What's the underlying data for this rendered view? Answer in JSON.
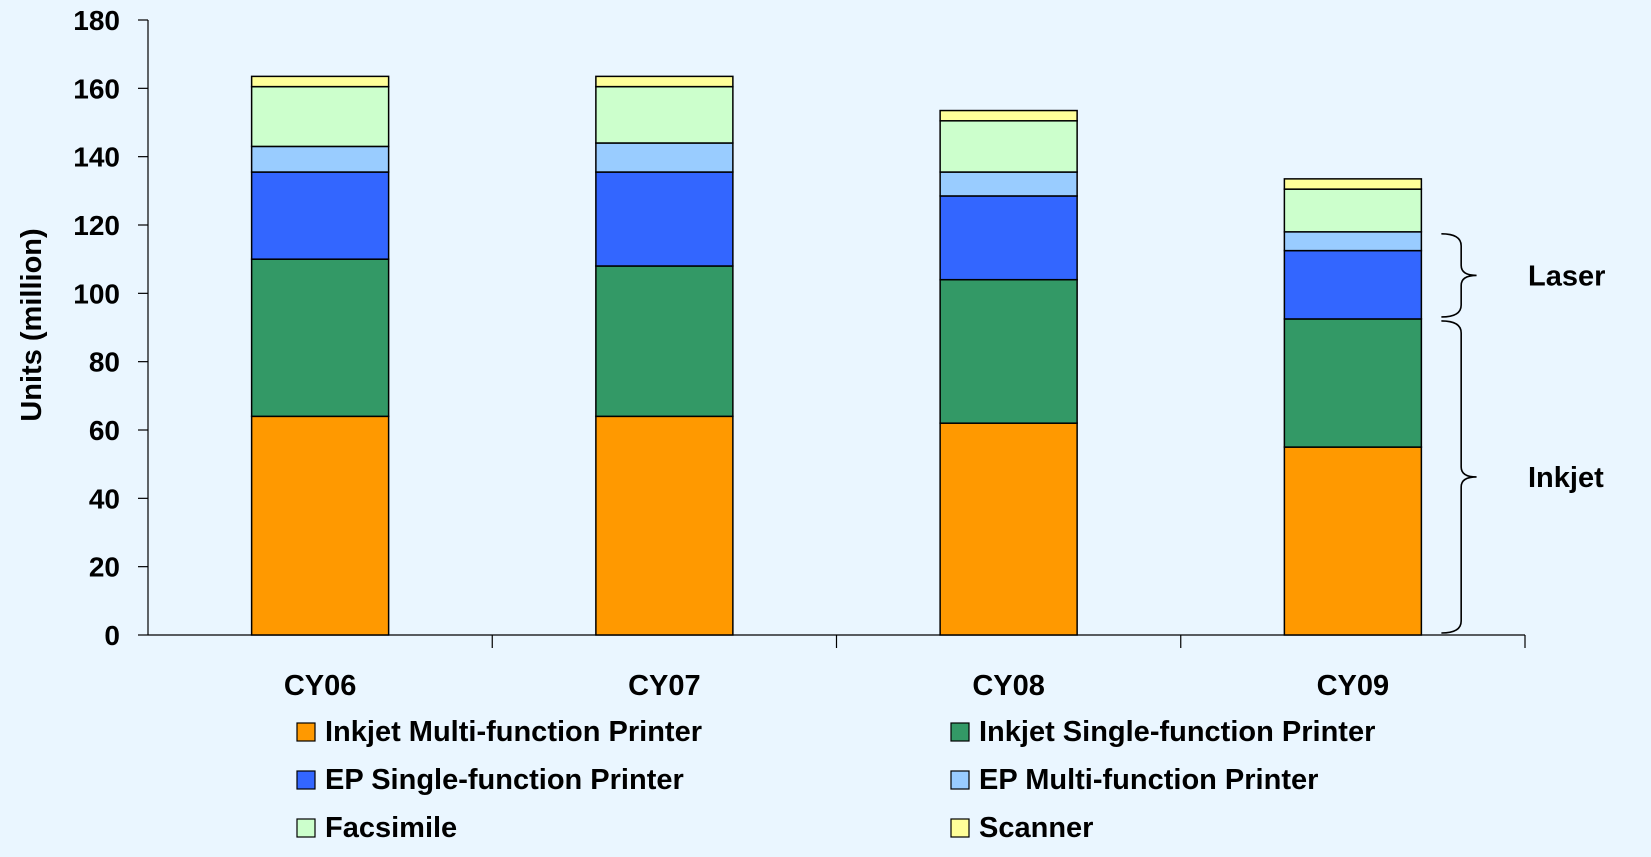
{
  "chart_data": {
    "type": "bar",
    "stacked": true,
    "categories": [
      "CY06",
      "CY07",
      "CY08",
      "CY09"
    ],
    "ylabel": "Units (million)",
    "ylim": [
      0,
      180
    ],
    "yticks": [
      0,
      20,
      40,
      60,
      80,
      100,
      120,
      140,
      160,
      180
    ],
    "grid": false,
    "legend_position": "bottom",
    "series": [
      {
        "name": "Inkjet Multi-function Printer",
        "color": "#ff9900",
        "values": [
          64,
          64,
          62,
          55
        ]
      },
      {
        "name": "Inkjet Single-function Printer",
        "color": "#339966",
        "values": [
          46,
          44,
          42,
          37.5
        ]
      },
      {
        "name": "EP Single-function Printer",
        "color": "#3366ff",
        "values": [
          25.5,
          27.5,
          24.5,
          20
        ]
      },
      {
        "name": "EP Multi-function Printer",
        "color": "#99ccff",
        "values": [
          7.5,
          8.5,
          7,
          5.5
        ]
      },
      {
        "name": "Facsimile",
        "color": "#ccffcc",
        "values": [
          17.5,
          16.5,
          15,
          12.5
        ]
      },
      {
        "name": "Scanner",
        "color": "#ffff99",
        "values": [
          3,
          3,
          3,
          3
        ]
      }
    ],
    "annotations": [
      {
        "label": "Laser",
        "from": 92.5,
        "to": 118
      },
      {
        "label": "Inkjet",
        "from": 0,
        "to": 92.5
      }
    ]
  }
}
